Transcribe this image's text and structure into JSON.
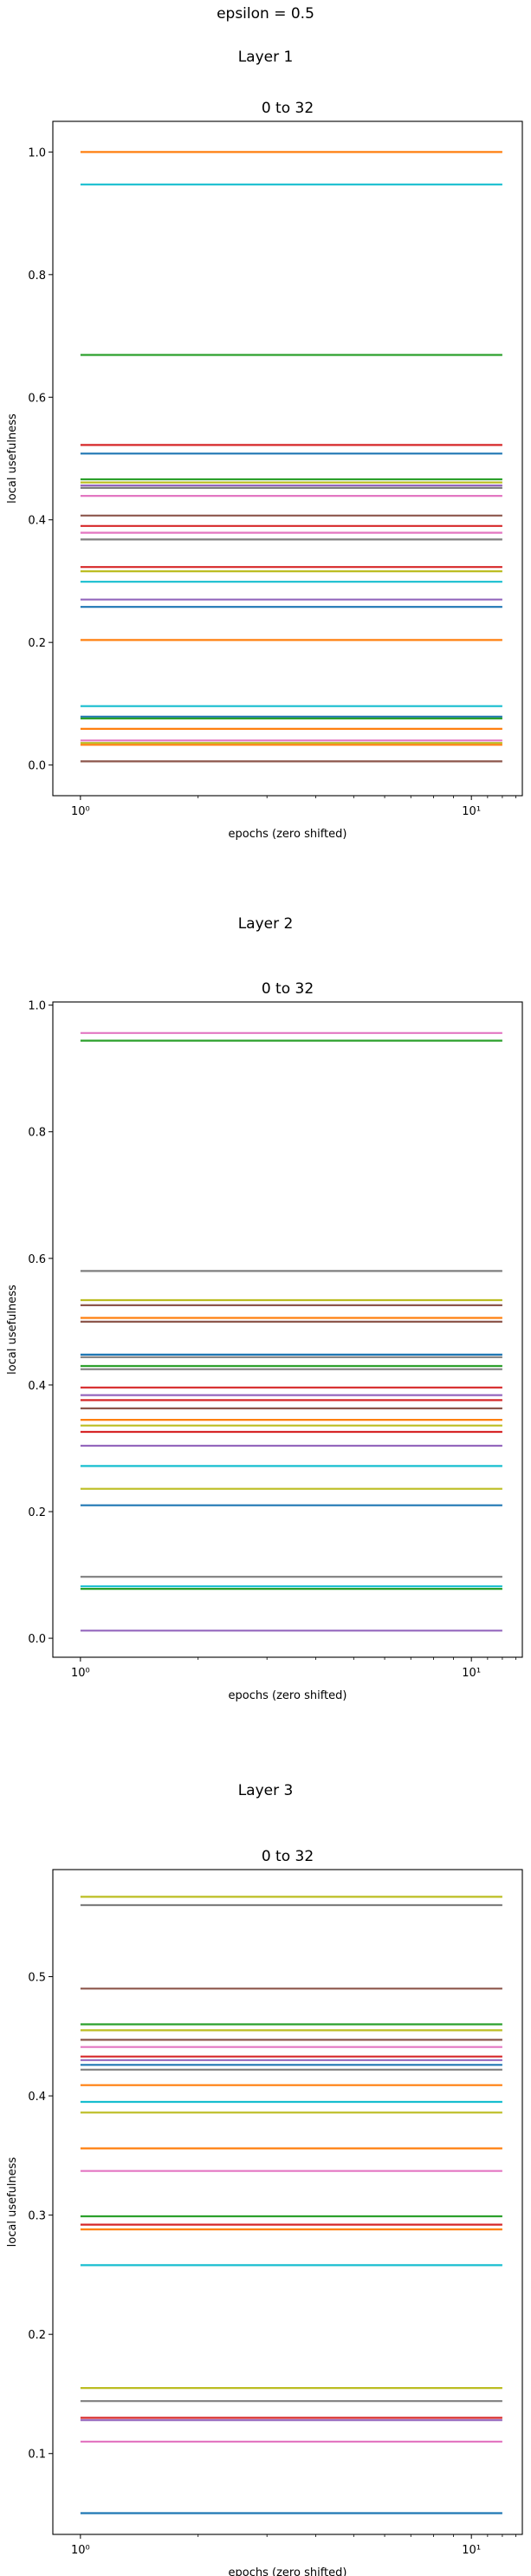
{
  "figure": {
    "suptitle": "epsilon = 0.5"
  },
  "chart_data": [
    {
      "type": "line",
      "suptitle": "Layer 1",
      "title": "0 to 32",
      "xlabel": "epochs (zero shifted)",
      "ylabel": "local usefulness",
      "xscale": "log",
      "xlim": [
        0.85,
        13.5
      ],
      "ylim": [
        -0.05,
        1.05
      ],
      "x": [
        1,
        12
      ],
      "xticks": [
        {
          "value": 1,
          "label": "10⁰"
        },
        {
          "value": 10,
          "label": "10¹"
        }
      ],
      "yticks": [
        {
          "value": 0.0,
          "label": "0.0"
        },
        {
          "value": 0.2,
          "label": "0.2"
        },
        {
          "value": 0.4,
          "label": "0.4"
        },
        {
          "value": 0.6,
          "label": "0.6"
        },
        {
          "value": 0.8,
          "label": "0.8"
        },
        {
          "value": 1.0,
          "label": "1.0"
        }
      ],
      "grid": false,
      "series": [
        {
          "values": [
            1.0,
            1.0
          ],
          "color": "#ff7f0e"
        },
        {
          "values": [
            0.947,
            0.947
          ],
          "color": "#17becf"
        },
        {
          "values": [
            0.669,
            0.669
          ],
          "color": "#2ca02c"
        },
        {
          "values": [
            0.522,
            0.522
          ],
          "color": "#d62728"
        },
        {
          "values": [
            0.508,
            0.508
          ],
          "color": "#1f77b4"
        },
        {
          "values": [
            0.466,
            0.466
          ],
          "color": "#2ca02c"
        },
        {
          "values": [
            0.461,
            0.461
          ],
          "color": "#bcbd22"
        },
        {
          "values": [
            0.456,
            0.456
          ],
          "color": "#9467bd"
        },
        {
          "values": [
            0.452,
            0.452
          ],
          "color": "#7f7f7f"
        },
        {
          "values": [
            0.439,
            0.439
          ],
          "color": "#e377c2"
        },
        {
          "values": [
            0.407,
            0.407
          ],
          "color": "#8c564b"
        },
        {
          "values": [
            0.39,
            0.39
          ],
          "color": "#d62728"
        },
        {
          "values": [
            0.379,
            0.379
          ],
          "color": "#e377c2"
        },
        {
          "values": [
            0.368,
            0.368
          ],
          "color": "#7f7f7f"
        },
        {
          "values": [
            0.323,
            0.323
          ],
          "color": "#d62728"
        },
        {
          "values": [
            0.316,
            0.316
          ],
          "color": "#bcbd22"
        },
        {
          "values": [
            0.299,
            0.299
          ],
          "color": "#17becf"
        },
        {
          "values": [
            0.27,
            0.27
          ],
          "color": "#9467bd"
        },
        {
          "values": [
            0.258,
            0.258
          ],
          "color": "#1f77b4"
        },
        {
          "values": [
            0.204,
            0.204
          ],
          "color": "#ff7f0e"
        },
        {
          "values": [
            0.096,
            0.096
          ],
          "color": "#17becf"
        },
        {
          "values": [
            0.079,
            0.079
          ],
          "color": "#1f77b4"
        },
        {
          "values": [
            0.076,
            0.076
          ],
          "color": "#2ca02c"
        },
        {
          "values": [
            0.059,
            0.059
          ],
          "color": "#ff7f0e"
        },
        {
          "values": [
            0.04,
            0.04
          ],
          "color": "#e377c2"
        },
        {
          "values": [
            0.036,
            0.036
          ],
          "color": "#bcbd22"
        },
        {
          "values": [
            0.033,
            0.033
          ],
          "color": "#ff7f0e"
        },
        {
          "values": [
            0.006,
            0.006
          ],
          "color": "#8c564b"
        }
      ]
    },
    {
      "type": "line",
      "suptitle": "Layer 2",
      "title": "0 to 32",
      "xlabel": "epochs (zero shifted)",
      "ylabel": "local usefulness",
      "xscale": "log",
      "xlim": [
        0.85,
        13.5
      ],
      "ylim": [
        -0.03,
        1.005
      ],
      "x": [
        1,
        12
      ],
      "xticks": [
        {
          "value": 1,
          "label": "10⁰"
        },
        {
          "value": 10,
          "label": "10¹"
        }
      ],
      "yticks": [
        {
          "value": 0.0,
          "label": "0.0"
        },
        {
          "value": 0.2,
          "label": "0.2"
        },
        {
          "value": 0.4,
          "label": "0.4"
        },
        {
          "value": 0.6,
          "label": "0.6"
        },
        {
          "value": 0.8,
          "label": "0.8"
        },
        {
          "value": 1.0,
          "label": "1.0"
        }
      ],
      "grid": false,
      "series": [
        {
          "values": [
            0.956,
            0.956
          ],
          "color": "#e377c2"
        },
        {
          "values": [
            0.944,
            0.944
          ],
          "color": "#2ca02c"
        },
        {
          "values": [
            0.58,
            0.58
          ],
          "color": "#7f7f7f"
        },
        {
          "values": [
            0.534,
            0.534
          ],
          "color": "#bcbd22"
        },
        {
          "values": [
            0.526,
            0.526
          ],
          "color": "#8c564b"
        },
        {
          "values": [
            0.506,
            0.506
          ],
          "color": "#ff7f0e"
        },
        {
          "values": [
            0.5,
            0.5
          ],
          "color": "#8c564b"
        },
        {
          "values": [
            0.448,
            0.448
          ],
          "color": "#1f77b4"
        },
        {
          "values": [
            0.444,
            0.444
          ],
          "color": "#7f7f7f"
        },
        {
          "values": [
            0.43,
            0.43
          ],
          "color": "#2ca02c"
        },
        {
          "values": [
            0.425,
            0.425
          ],
          "color": "#7f7f7f"
        },
        {
          "values": [
            0.396,
            0.396
          ],
          "color": "#d62728"
        },
        {
          "values": [
            0.384,
            0.384
          ],
          "color": "#9467bd"
        },
        {
          "values": [
            0.376,
            0.376
          ],
          "color": "#d62728"
        },
        {
          "values": [
            0.363,
            0.363
          ],
          "color": "#8c564b"
        },
        {
          "values": [
            0.345,
            0.345
          ],
          "color": "#ff7f0e"
        },
        {
          "values": [
            0.336,
            0.336
          ],
          "color": "#bcbd22"
        },
        {
          "values": [
            0.326,
            0.326
          ],
          "color": "#d62728"
        },
        {
          "values": [
            0.304,
            0.304
          ],
          "color": "#9467bd"
        },
        {
          "values": [
            0.272,
            0.272
          ],
          "color": "#17becf"
        },
        {
          "values": [
            0.236,
            0.236
          ],
          "color": "#bcbd22"
        },
        {
          "values": [
            0.21,
            0.21
          ],
          "color": "#1f77b4"
        },
        {
          "values": [
            0.097,
            0.097
          ],
          "color": "#7f7f7f"
        },
        {
          "values": [
            0.082,
            0.082
          ],
          "color": "#17becf"
        },
        {
          "values": [
            0.078,
            0.078
          ],
          "color": "#2ca02c"
        },
        {
          "values": [
            0.012,
            0.012
          ],
          "color": "#9467bd"
        }
      ]
    },
    {
      "type": "line",
      "suptitle": "Layer 3",
      "title": "0 to 32",
      "xlabel": "epochs (zero shifted)",
      "ylabel": "local usefulness",
      "xscale": "log",
      "xlim": [
        0.85,
        13.5
      ],
      "ylim": [
        0.0322,
        0.5898
      ],
      "x": [
        1,
        12
      ],
      "xticks": [
        {
          "value": 1,
          "label": "10⁰"
        },
        {
          "value": 10,
          "label": "10¹"
        }
      ],
      "yticks": [
        {
          "value": 0.1,
          "label": "0.1"
        },
        {
          "value": 0.2,
          "label": "0.2"
        },
        {
          "value": 0.3,
          "label": "0.3"
        },
        {
          "value": 0.4,
          "label": "0.4"
        },
        {
          "value": 0.5,
          "label": "0.5"
        }
      ],
      "grid": false,
      "series": [
        {
          "values": [
            0.567,
            0.567
          ],
          "color": "#bcbd22"
        },
        {
          "values": [
            0.56,
            0.56
          ],
          "color": "#7f7f7f"
        },
        {
          "values": [
            0.49,
            0.49
          ],
          "color": "#8c564b"
        },
        {
          "values": [
            0.46,
            0.46
          ],
          "color": "#2ca02c"
        },
        {
          "values": [
            0.455,
            0.455
          ],
          "color": "#bcbd22"
        },
        {
          "values": [
            0.447,
            0.447
          ],
          "color": "#8c564b"
        },
        {
          "values": [
            0.441,
            0.441
          ],
          "color": "#e377c2"
        },
        {
          "values": [
            0.433,
            0.433
          ],
          "color": "#d62728"
        },
        {
          "values": [
            0.43,
            0.43
          ],
          "color": "#9467bd"
        },
        {
          "values": [
            0.426,
            0.426
          ],
          "color": "#1f77b4"
        },
        {
          "values": [
            0.422,
            0.422
          ],
          "color": "#7f7f7f"
        },
        {
          "values": [
            0.409,
            0.409
          ],
          "color": "#ff7f0e"
        },
        {
          "values": [
            0.395,
            0.395
          ],
          "color": "#17becf"
        },
        {
          "values": [
            0.386,
            0.386
          ],
          "color": "#bcbd22"
        },
        {
          "values": [
            0.356,
            0.356
          ],
          "color": "#ff7f0e"
        },
        {
          "values": [
            0.337,
            0.337
          ],
          "color": "#e377c2"
        },
        {
          "values": [
            0.299,
            0.299
          ],
          "color": "#2ca02c"
        },
        {
          "values": [
            0.292,
            0.292
          ],
          "color": "#d62728"
        },
        {
          "values": [
            0.288,
            0.288
          ],
          "color": "#ff7f0e"
        },
        {
          "values": [
            0.258,
            0.258
          ],
          "color": "#17becf"
        },
        {
          "values": [
            0.155,
            0.155
          ],
          "color": "#bcbd22"
        },
        {
          "values": [
            0.144,
            0.144
          ],
          "color": "#7f7f7f"
        },
        {
          "values": [
            0.13,
            0.13
          ],
          "color": "#d62728"
        },
        {
          "values": [
            0.128,
            0.128
          ],
          "color": "#9467bd"
        },
        {
          "values": [
            0.11,
            0.11
          ],
          "color": "#e377c2"
        },
        {
          "values": [
            0.05,
            0.05
          ],
          "color": "#1f77b4"
        }
      ]
    }
  ]
}
